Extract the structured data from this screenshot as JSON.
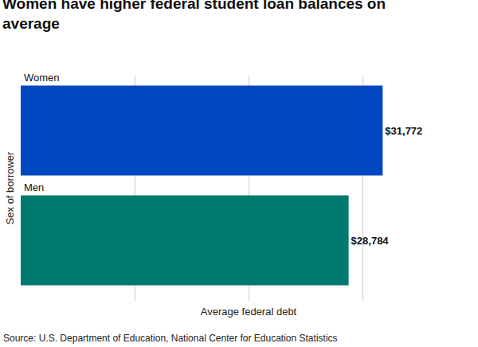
{
  "chart_data": {
    "type": "bar",
    "orientation": "horizontal",
    "title": "Women have higher federal student loan balances on average",
    "x_label": "Average federal debt",
    "y_label": "Sex of borrower",
    "source": "Source: U.S. Department of Education, National Center for Education Statistics",
    "categories": [
      "Women",
      "Men"
    ],
    "values": [
      31772,
      28784
    ],
    "value_labels": [
      "$31,772",
      "$28,784"
    ],
    "colors": [
      "#0047c2",
      "#00796f"
    ],
    "xlim": [
      0,
      40000
    ],
    "xticks": [
      0,
      10000,
      20000,
      30000,
      40000
    ],
    "grid": true,
    "data_labels": true,
    "tick_labels": "y"
  }
}
